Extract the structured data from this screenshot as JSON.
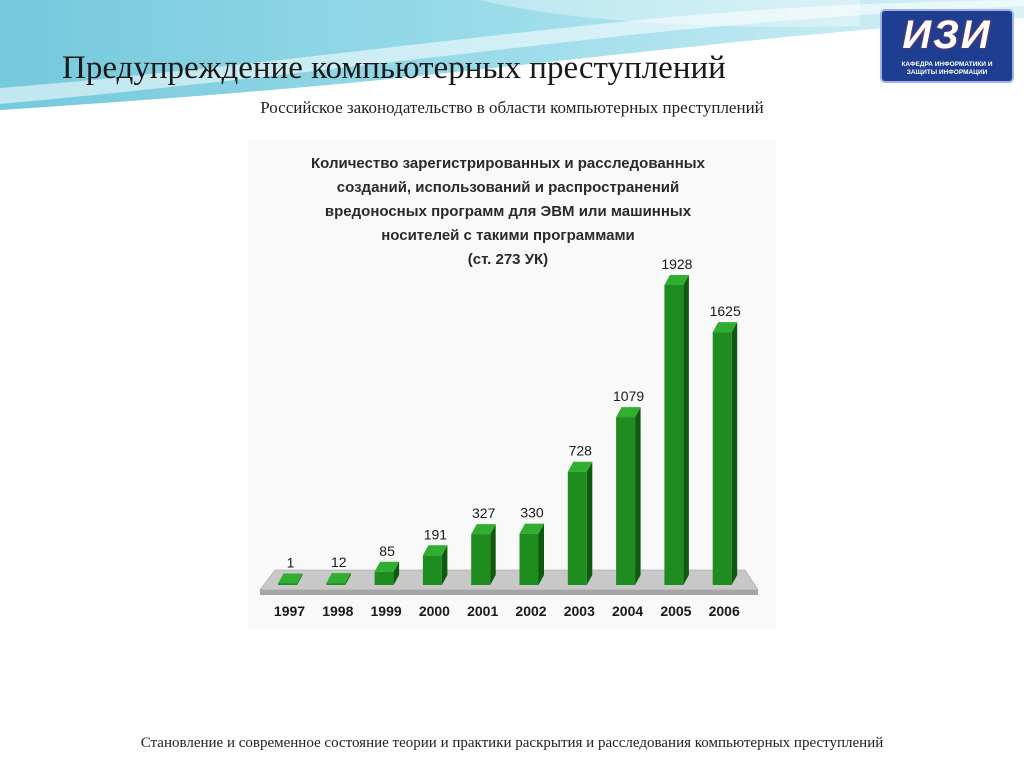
{
  "slide": {
    "title": "Предупреждение компьютерных преступлений",
    "subtitle": "Российское законодательство в области компьютерных преступлений",
    "footer": "Становление и современное состояние теории и практики раскрытия и расследования компьютерных преступлений"
  },
  "logo": {
    "text": "ИЗИ",
    "subtext": "КАФЕДРА ИНФОРМАТИКИ И ЗАЩИТЫ ИНФОРМАЦИИ",
    "color": "#1e3f91"
  },
  "colors": {
    "bar": "#1e8c1e",
    "bar_side": "#0f5a10",
    "bar_top": "#2fae2f",
    "floor": "#c8c8c8",
    "background_wave": "#6fc7db"
  },
  "chart_data": {
    "type": "bar",
    "title_lines": [
      "Количество зарегистрированных и расследованных",
      "созданий, использований и распространений",
      "вредоносных программ для ЭВМ или машинных",
      "носителей с такими программами",
      "(ст. 273 УК)"
    ],
    "categories": [
      "1997",
      "1998",
      "1999",
      "2000",
      "2001",
      "2002",
      "2003",
      "2004",
      "2005",
      "2006"
    ],
    "values": [
      1,
      12,
      85,
      191,
      327,
      330,
      728,
      1079,
      1928,
      1625
    ],
    "data_labels": [
      "1",
      "12",
      "85",
      "191",
      "327",
      "330",
      "728",
      "1079",
      "1928",
      "1625"
    ],
    "ylim": [
      0,
      1928
    ],
    "grid": false,
    "legend": "none",
    "style": "3d-bars"
  }
}
